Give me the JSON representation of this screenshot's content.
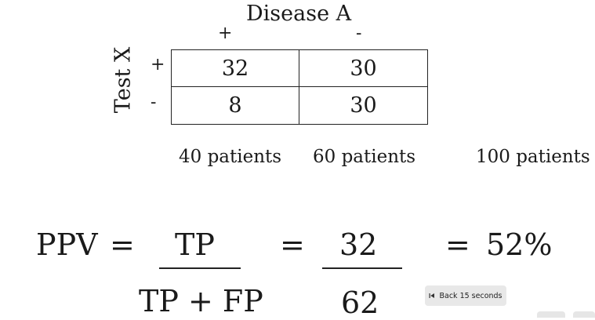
{
  "table": {
    "column_header": "Disease A",
    "column_labels": [
      "+",
      "-"
    ],
    "row_header": "Test X",
    "row_labels": [
      "+",
      "-"
    ],
    "cells": [
      [
        "32",
        "30"
      ],
      [
        "8",
        "30"
      ]
    ],
    "totals": [
      "40 patients",
      "60 patients",
      "100 patients"
    ]
  },
  "formula": {
    "lhs": "PPV",
    "equals": "=",
    "numerator": "TP",
    "denominator": "TP + FP",
    "value_numerator": "32",
    "value_denominator": "62",
    "result": "52%"
  },
  "player": {
    "back_label": "Back 15 seconds",
    "back_icon": "skip-back-icon"
  }
}
